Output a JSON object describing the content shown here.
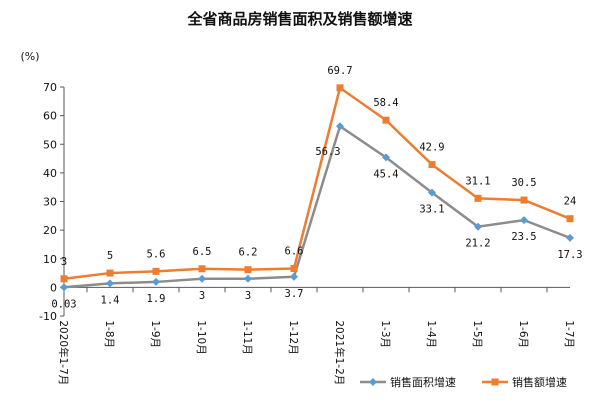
{
  "chart_data": {
    "type": "line",
    "title": "全省商品房销售面积及销售额增速",
    "ylabel": "(%)",
    "xlabel": "",
    "ylim": [
      -10,
      70
    ],
    "yticks": [
      -10,
      0,
      10,
      20,
      30,
      40,
      50,
      60,
      70
    ],
    "grid": false,
    "legend_position": "bottom-right",
    "categories": [
      "2020年1-7月",
      "1-8月",
      "1-9月",
      "1-10月",
      "1-11月",
      "1-12月",
      "2021年1-2月",
      "1-3月",
      "1-4月",
      "1-5月",
      "1-6月",
      "1-7月"
    ],
    "series": [
      {
        "name": "销售面积增速",
        "color": "#8c8c8c",
        "marker_color": "#5b9bd5",
        "marker": "diamond",
        "values": [
          0.03,
          1.4,
          1.9,
          3,
          3,
          3.7,
          56.3,
          45.4,
          33.1,
          21.2,
          23.5,
          17.3
        ],
        "labels": [
          "0.03",
          "1.4",
          "1.9",
          "3",
          "3",
          "3.7",
          "56.3",
          "45.4",
          "33.1",
          "21.2",
          "23.5",
          "17.3"
        ]
      },
      {
        "name": "销售额增速",
        "color": "#ed7d31",
        "marker_color": "#ed7d31",
        "marker": "square",
        "values": [
          3,
          5,
          5.6,
          6.5,
          6.2,
          6.6,
          69.7,
          58.4,
          42.9,
          31.1,
          30.5,
          24
        ],
        "labels": [
          "3",
          "5",
          "5.6",
          "6.5",
          "6.2",
          "6.6",
          "69.7",
          "58.4",
          "42.9",
          "31.1",
          "30.5",
          "24"
        ]
      }
    ]
  }
}
